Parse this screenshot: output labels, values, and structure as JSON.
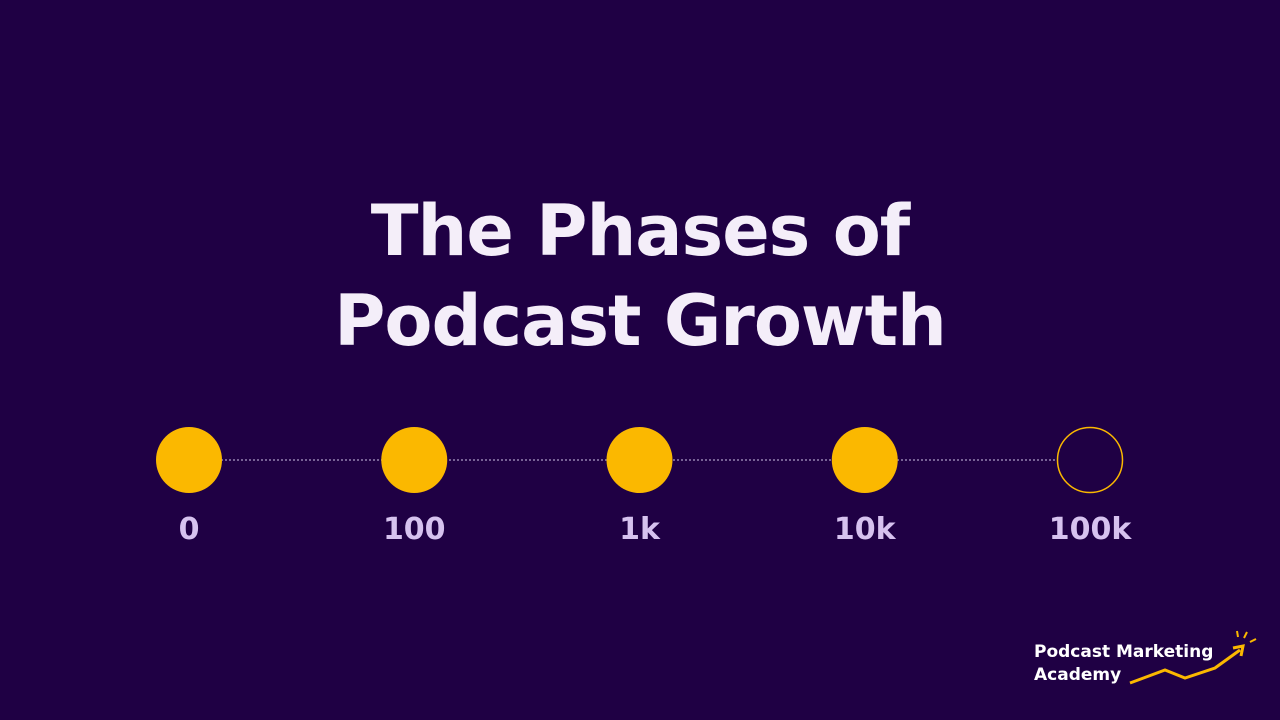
{
  "title": {
    "line1": "The Phases of",
    "line2": "Podcast Growth"
  },
  "phases": [
    {
      "label": "0",
      "filled": true
    },
    {
      "label": "100",
      "filled": true
    },
    {
      "label": "1k",
      "filled": true
    },
    {
      "label": "10k",
      "filled": true
    },
    {
      "label": "100k",
      "filled": false
    }
  ],
  "logo": {
    "line1": "Podcast Marketing",
    "line2": "Academy"
  }
}
